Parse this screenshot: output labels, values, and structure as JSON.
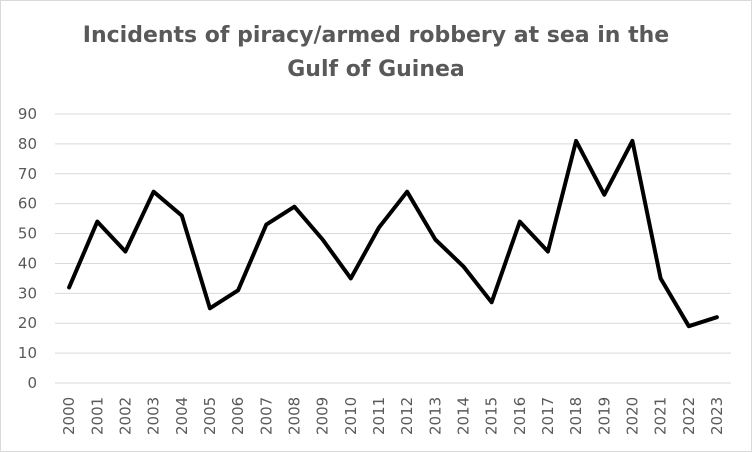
{
  "chart_data": {
    "type": "line",
    "title_lines": [
      "Incidents of piracy/armed robbery at sea in the",
      "Gulf of Guinea"
    ],
    "categories": [
      "2000",
      "2001",
      "2002",
      "2003",
      "2004",
      "2005",
      "2006",
      "2007",
      "2008",
      "2009",
      "2010",
      "2011",
      "2012",
      "2013",
      "2014",
      "2015",
      "2016",
      "2017",
      "2018",
      "2019",
      "2020",
      "2021",
      "2022",
      "2023"
    ],
    "series": [
      {
        "values": [
          32,
          54,
          44,
          64,
          56,
          25,
          31,
          53,
          59,
          48,
          35,
          52,
          64,
          48,
          39,
          27,
          54,
          44,
          81,
          63,
          81,
          35,
          19,
          22
        ],
        "color": "#000000"
      }
    ],
    "yticks": [
      "0",
      "10",
      "20",
      "30",
      "40",
      "50",
      "60",
      "70",
      "80",
      "90"
    ],
    "ylim": [
      0,
      90
    ],
    "grid": true,
    "legend": "none",
    "colors": {
      "gridline": "#d9d9d9",
      "text": "#595959",
      "line": "#000000"
    }
  }
}
